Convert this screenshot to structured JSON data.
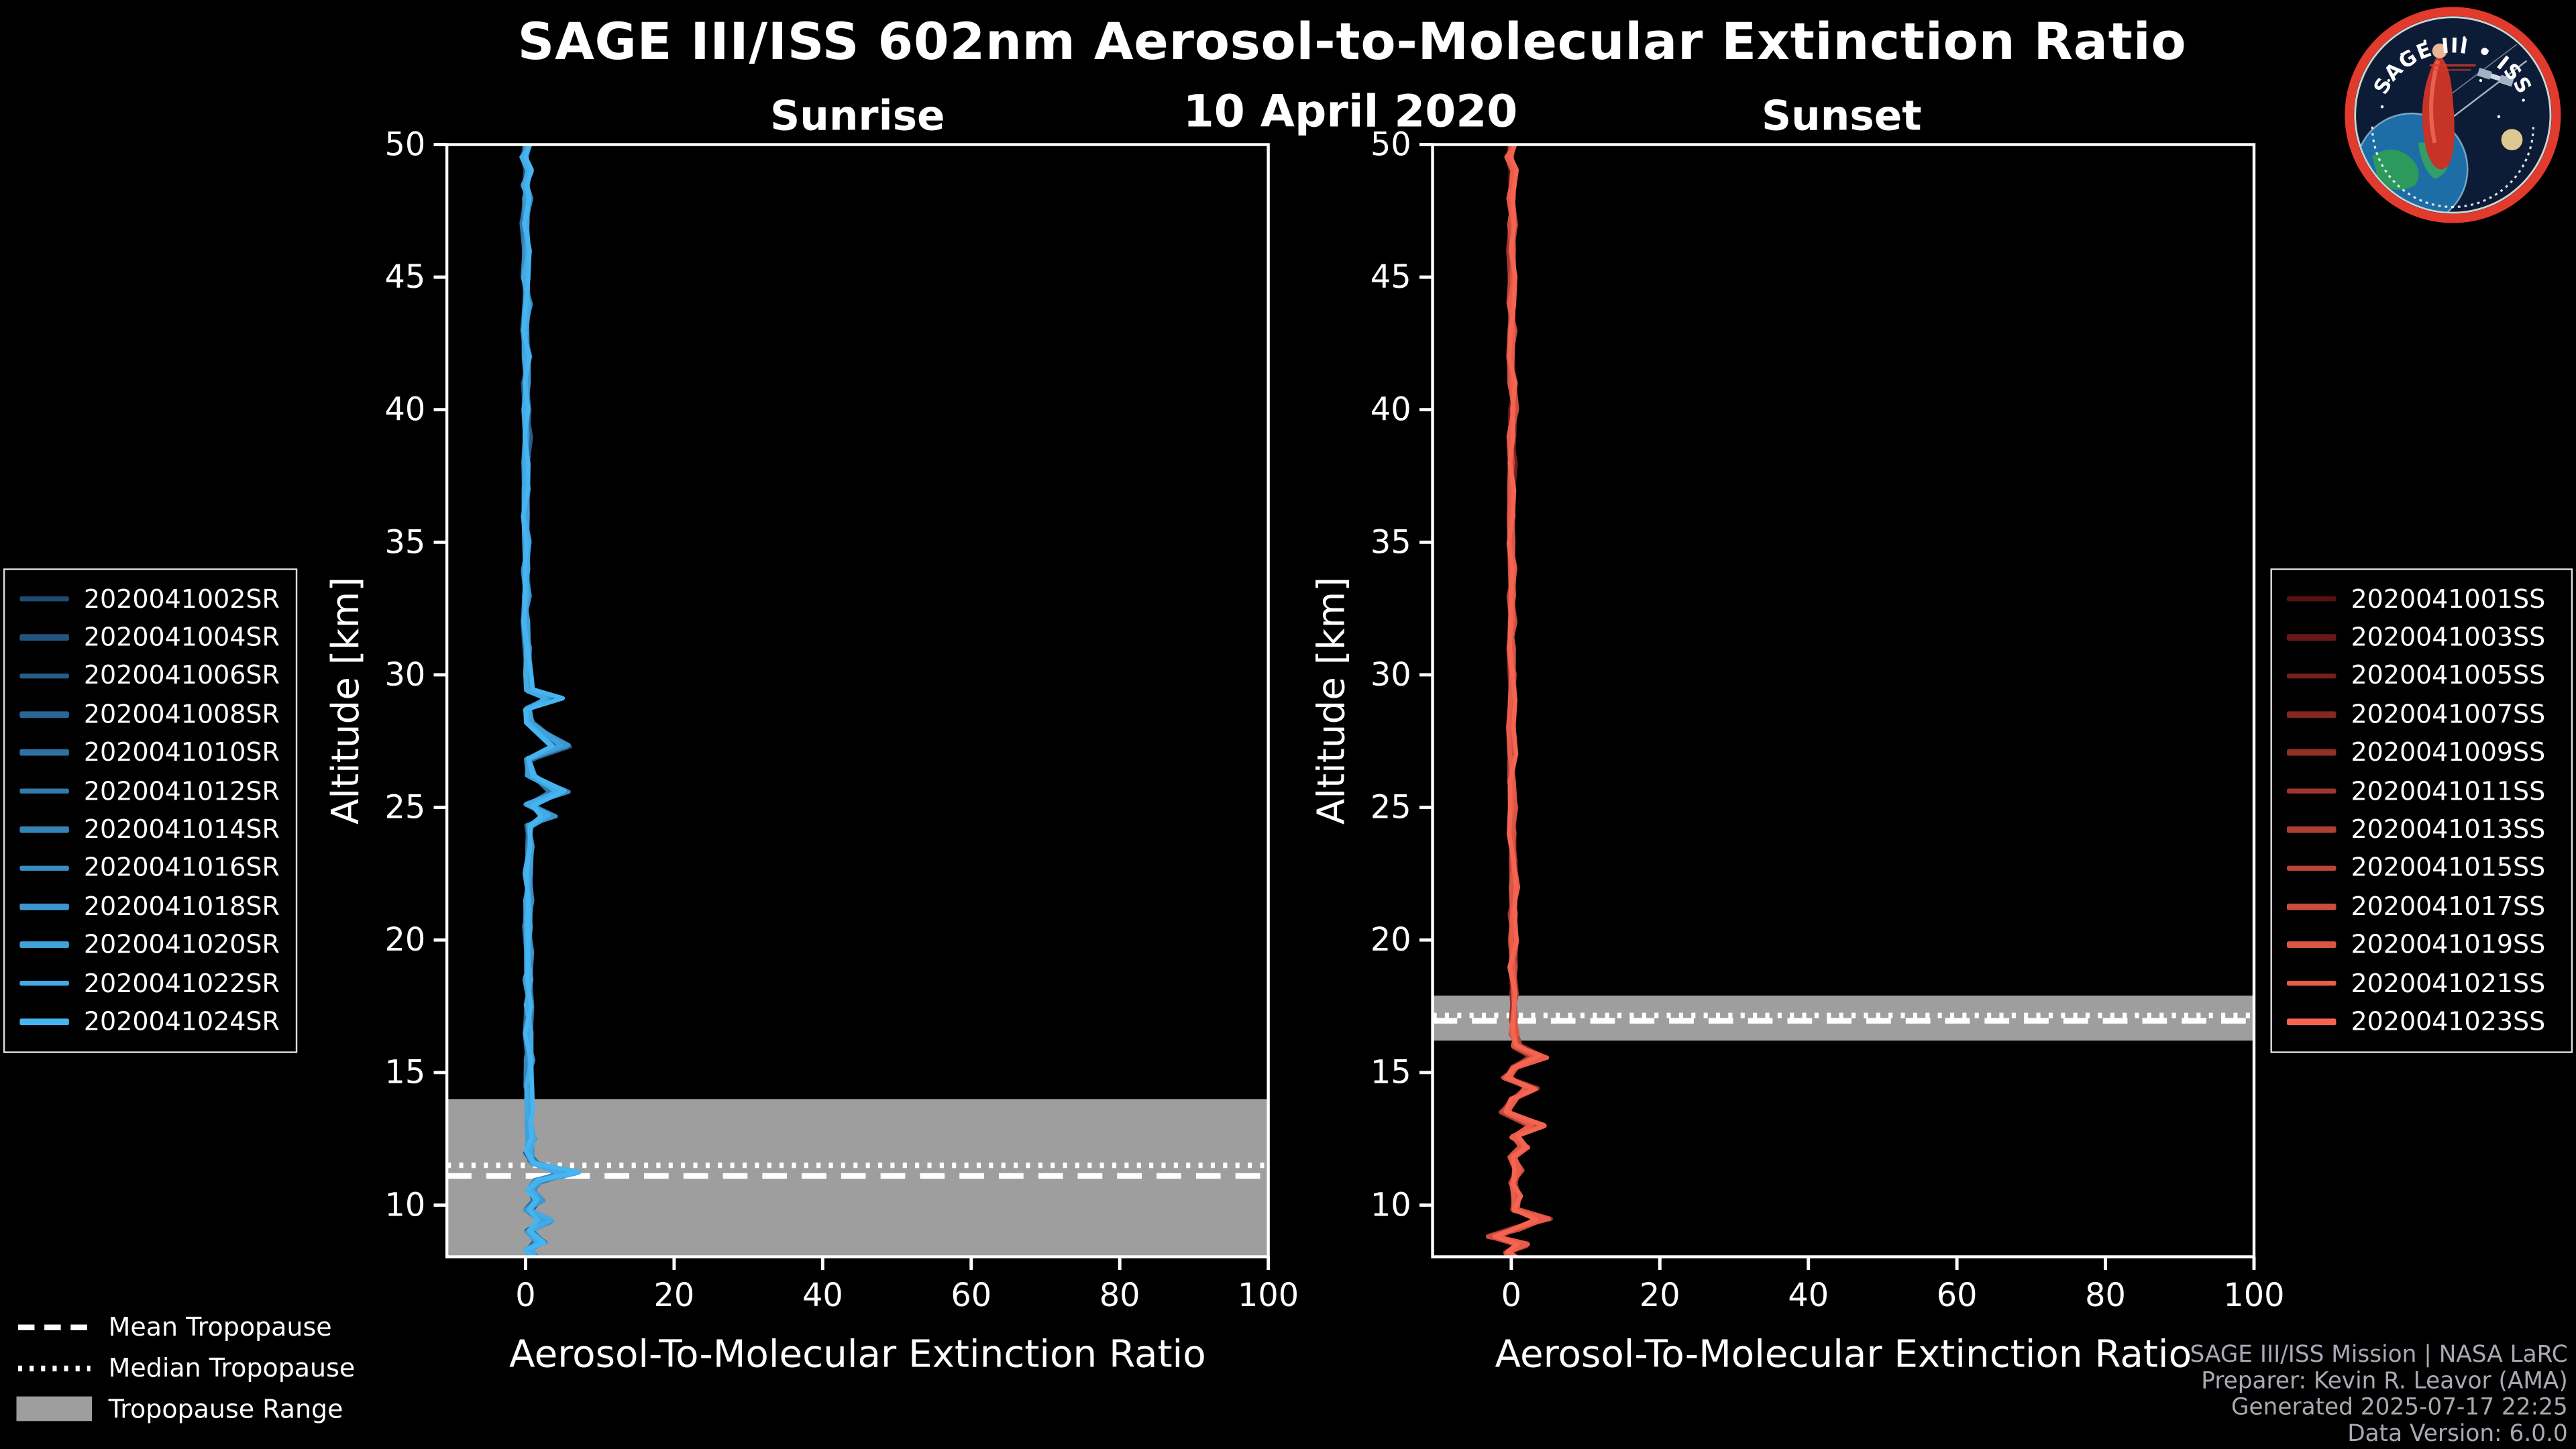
{
  "header": {
    "title": "SAGE III/ISS 602nm Aerosol-to-Molecular Extinction Ratio",
    "date": "10 April 2020"
  },
  "logo": {
    "title": "SAGE III • ISS"
  },
  "colors": {
    "background": "#000000",
    "axis": "#ffffff",
    "tropopause_band": "#9e9e9e",
    "tropopause_line": "#ffffff"
  },
  "chart_data": [
    {
      "type": "line",
      "title": "Sunrise",
      "xlabel": "Aerosol-To-Molecular Extinction Ratio",
      "ylabel": "Altitude [km]",
      "xlim": [
        -10.6,
        100
      ],
      "ylim": [
        8.05,
        50
      ],
      "xticks": [
        0,
        20,
        40,
        60,
        80,
        100
      ],
      "yticks": [
        10,
        15,
        20,
        25,
        30,
        35,
        40,
        45,
        50
      ],
      "tropopause": {
        "mean_km": 11.1,
        "median_km": 11.5,
        "range_km": [
          8.05,
          14.0
        ]
      },
      "series": [
        {
          "name": "2020041002SR",
          "color": "#204a73"
        },
        {
          "name": "2020041004SR",
          "color": "#23547e"
        },
        {
          "name": "2020041006SR",
          "color": "#275d89"
        },
        {
          "name": "2020041008SR",
          "color": "#2a6795"
        },
        {
          "name": "2020041010SR",
          "color": "#2e71a0"
        },
        {
          "name": "2020041012SR",
          "color": "#317aac"
        },
        {
          "name": "2020041014SR",
          "color": "#3584b7"
        },
        {
          "name": "2020041016SR",
          "color": "#388ec2"
        },
        {
          "name": "2020041018SR",
          "color": "#3c97ce"
        },
        {
          "name": "2020041020SR",
          "color": "#3fa1d9"
        },
        {
          "name": "2020041022SR",
          "color": "#43aae5"
        },
        {
          "name": "2020041024SR",
          "color": "#46b4f0"
        }
      ],
      "profile_points": [
        [
          50,
          0.3
        ],
        [
          49.5,
          -0.1
        ],
        [
          49,
          0.4
        ],
        [
          48.5,
          0
        ],
        [
          48,
          0.3
        ],
        [
          47,
          -0.2
        ],
        [
          46,
          0.2
        ],
        [
          45,
          0
        ],
        [
          44,
          0.3
        ],
        [
          43,
          -0.1
        ],
        [
          42,
          0.2
        ],
        [
          41,
          0
        ],
        [
          40,
          0.1
        ],
        [
          39,
          0.3
        ],
        [
          38,
          0
        ],
        [
          37,
          0.2
        ],
        [
          36,
          -0.1
        ],
        [
          35,
          0.1
        ],
        [
          34,
          0
        ],
        [
          33,
          0.2
        ],
        [
          32,
          0
        ],
        [
          31,
          0.2
        ],
        [
          30,
          0.4
        ],
        [
          29.4,
          0.6
        ],
        [
          29.1,
          3.8
        ],
        [
          28.7,
          0.3
        ],
        [
          28.2,
          0.6
        ],
        [
          27.3,
          4.8
        ],
        [
          26.8,
          0.4
        ],
        [
          26.2,
          0.7
        ],
        [
          25.6,
          4.5
        ],
        [
          25.1,
          0.5
        ],
        [
          24.7,
          3.1
        ],
        [
          24.3,
          0.4
        ],
        [
          23.5,
          0.5
        ],
        [
          22.5,
          0.3
        ],
        [
          21.5,
          0.4
        ],
        [
          20.5,
          0.2
        ],
        [
          19.5,
          0.4
        ],
        [
          18.5,
          0.3
        ],
        [
          17.5,
          0.4
        ],
        [
          16.5,
          0.3
        ],
        [
          15.5,
          0.5
        ],
        [
          14.5,
          0.4
        ],
        [
          13.5,
          0.6
        ],
        [
          13,
          0.4
        ],
        [
          12.5,
          0.8
        ],
        [
          12,
          0.4
        ],
        [
          11.6,
          1.2
        ],
        [
          11.2,
          5.8
        ],
        [
          10.9,
          1.6
        ],
        [
          10.6,
          0.6
        ],
        [
          10.2,
          1.9
        ],
        [
          9.8,
          0.4
        ],
        [
          9.4,
          2.6
        ],
        [
          9,
          0.6
        ],
        [
          8.6,
          1.9
        ],
        [
          8.3,
          0.5
        ],
        [
          8.05,
          1.0
        ]
      ]
    },
    {
      "type": "line",
      "title": "Sunset",
      "xlabel": "Aerosol-To-Molecular Extinction Ratio",
      "ylabel": "Altitude [km]",
      "xlim": [
        -10.6,
        100
      ],
      "ylim": [
        8.05,
        50
      ],
      "xticks": [
        0,
        20,
        40,
        60,
        80,
        100
      ],
      "yticks": [
        10,
        15,
        20,
        25,
        30,
        35,
        40,
        45,
        50
      ],
      "tropopause": {
        "mean_km": 16.95,
        "median_km": 17.15,
        "range_km": [
          16.2,
          17.9
        ]
      },
      "series": [
        {
          "name": "2020041001SS",
          "color": "#5a1010"
        },
        {
          "name": "2020041003SS",
          "color": "#681816"
        },
        {
          "name": "2020041005SS",
          "color": "#761f1c"
        },
        {
          "name": "2020041007SS",
          "color": "#842721"
        },
        {
          "name": "2020041009SS",
          "color": "#922f27"
        },
        {
          "name": "2020041011SS",
          "color": "#a0362d"
        },
        {
          "name": "2020041013SS",
          "color": "#af3e33"
        },
        {
          "name": "2020041015SS",
          "color": "#bd4539"
        },
        {
          "name": "2020041017SS",
          "color": "#cb4d3f"
        },
        {
          "name": "2020041019SS",
          "color": "#d95544"
        },
        {
          "name": "2020041021SS",
          "color": "#e75c4a"
        },
        {
          "name": "2020041023SS",
          "color": "#f56450"
        }
      ],
      "profile_points": [
        [
          50,
          0.2
        ],
        [
          49.5,
          -0.2
        ],
        [
          49,
          0.3
        ],
        [
          48,
          0
        ],
        [
          47,
          0.2
        ],
        [
          46,
          -0.1
        ],
        [
          45,
          0.2
        ],
        [
          44,
          0
        ],
        [
          43,
          0.2
        ],
        [
          42,
          -0.1
        ],
        [
          41,
          0.2
        ],
        [
          40,
          0.3
        ],
        [
          39,
          0
        ],
        [
          38,
          0.2
        ],
        [
          37,
          0
        ],
        [
          36,
          0.1
        ],
        [
          35,
          -0.1
        ],
        [
          34,
          0.1
        ],
        [
          33,
          0
        ],
        [
          32,
          0.2
        ],
        [
          31,
          0
        ],
        [
          30,
          0.1
        ],
        [
          29,
          0.2
        ],
        [
          28,
          0
        ],
        [
          27,
          0.2
        ],
        [
          26,
          0.1
        ],
        [
          25,
          0.3
        ],
        [
          24,
          0.1
        ],
        [
          23,
          0.3
        ],
        [
          22,
          0.4
        ],
        [
          21,
          0.2
        ],
        [
          20,
          0.3
        ],
        [
          19,
          0.2
        ],
        [
          18,
          0.3
        ],
        [
          17,
          0.2
        ],
        [
          16.5,
          0.4
        ],
        [
          16,
          0.7
        ],
        [
          15.6,
          3.6
        ],
        [
          15.2,
          0.5
        ],
        [
          14.8,
          -0.6
        ],
        [
          14.4,
          2.6
        ],
        [
          14,
          0.3
        ],
        [
          13.5,
          -0.9
        ],
        [
          13,
          3.4
        ],
        [
          12.6,
          0.5
        ],
        [
          12.2,
          1.6
        ],
        [
          11.8,
          0.2
        ],
        [
          11.3,
          0.9
        ],
        [
          10.8,
          0.3
        ],
        [
          10.3,
          0.7
        ],
        [
          9.8,
          0.4
        ],
        [
          9.5,
          4.3
        ],
        [
          9.1,
          0.6
        ],
        [
          8.8,
          -2.3
        ],
        [
          8.5,
          1.5
        ],
        [
          8.2,
          -0.4
        ],
        [
          8.05,
          0.3
        ]
      ]
    }
  ],
  "tropopause_legend": [
    {
      "label": "Mean Tropopause",
      "style": "dashed"
    },
    {
      "label": "Median Tropopause",
      "style": "dotted"
    },
    {
      "label": "Tropopause Range",
      "style": "band"
    }
  ],
  "credits": [
    "SAGE III/ISS Mission | NASA LaRC",
    "Preparer: Kevin R. Leavor (AMA)",
    "Generated 2025-07-17 22:25",
    "Data Version: 6.0.0"
  ]
}
